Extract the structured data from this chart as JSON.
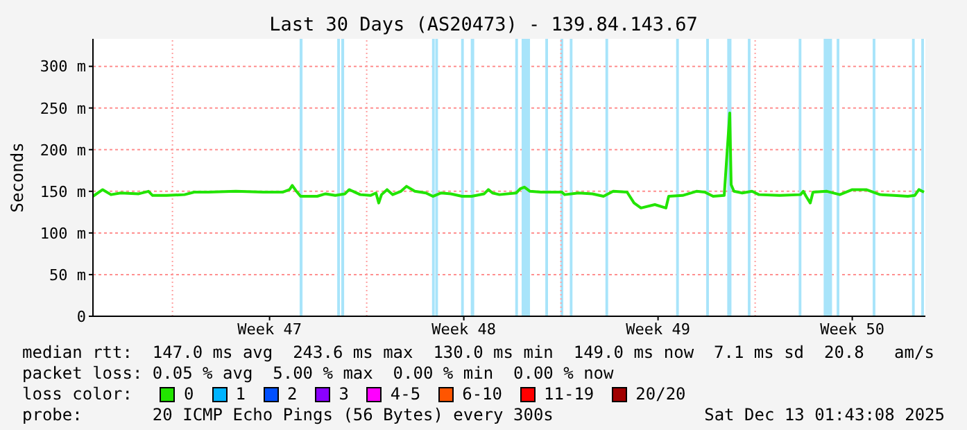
{
  "chart_data": {
    "type": "line",
    "title": "Last 30 Days (AS20473) - 139.84.143.67",
    "ylabel": "Seconds",
    "x": [
      "2025-11-14T03:14",
      "2025-11-14T11:38",
      "2025-11-14T18:50",
      "2025-11-15T03:14",
      "2025-11-15T18:50",
      "2025-11-16T03:14",
      "2025-11-16T06:50",
      "2025-11-16T18:50",
      "2025-11-17T10:26",
      "2025-11-17T18:50",
      "2025-11-18T06:50",
      "2025-11-19T06:50",
      "2025-11-20T06:50",
      "2025-11-20T23:14",
      "2025-11-21T05:14",
      "2025-11-21T07:38",
      "2025-11-21T11:14",
      "2025-11-21T14:50",
      "2025-11-22T05:14",
      "2025-11-22T12:26",
      "2025-11-22T20:50",
      "2025-11-23T05:14",
      "2025-11-23T08:50",
      "2025-11-23T18:26",
      "2025-11-24T03:14",
      "2025-11-24T08:02",
      "2025-11-24T10:26",
      "2025-11-24T12:50",
      "2025-11-24T17:38",
      "2025-11-24T22:26",
      "2025-11-25T05:38",
      "2025-11-25T10:26",
      "2025-11-25T17:38",
      "2025-11-26T03:14",
      "2025-11-26T09:14",
      "2025-11-26T16:26",
      "2025-11-27T00:50",
      "2025-11-27T10:26",
      "2025-11-27T18:50",
      "2025-11-28T05:38",
      "2025-11-28T09:14",
      "2025-11-28T12:50",
      "2025-11-28T18:50",
      "2025-11-29T09:14",
      "2025-11-29T12:50",
      "2025-11-29T16:26",
      "2025-11-29T21:14",
      "2025-11-30T06:50",
      "2025-12-01T00:50",
      "2025-12-01T03:14",
      "2025-12-01T15:14",
      "2025-12-02T03:14",
      "2025-12-02T12:50",
      "2025-12-02T21:14",
      "2025-12-03T09:14",
      "2025-12-03T15:14",
      "2025-12-03T21:14",
      "2025-12-04T09:14",
      "2025-12-04T18:50",
      "2025-12-04T21:14",
      "2025-12-05T09:14",
      "2025-12-05T21:14",
      "2025-12-06T04:26",
      "2025-12-06T11:38",
      "2025-12-06T21:14",
      "2025-12-07T02:02",
      "2025-12-07T03:14",
      "2025-12-07T05:38",
      "2025-12-07T12:50",
      "2025-12-07T21:14",
      "2025-12-08T03:14",
      "2025-12-08T21:14",
      "2025-12-09T15:14",
      "2025-12-09T17:38",
      "2025-12-09T20:02",
      "2025-12-09T23:38",
      "2025-12-10T02:02",
      "2025-12-10T14:02",
      "2025-12-11T01:14",
      "2025-12-11T12:02",
      "2025-12-12T00:02",
      "2025-12-12T12:02",
      "2025-12-13T00:02",
      "2025-12-13T12:02",
      "2025-12-13T18:02",
      "2025-12-13T21:38",
      "2025-12-14T02:02"
    ],
    "series": [
      {
        "name": "0",
        "color": "#22e400",
        "values": [
          144,
          152,
          146,
          148,
          147,
          150,
          145,
          145,
          146,
          149,
          149,
          150,
          149,
          149,
          152,
          157,
          150,
          144,
          144,
          147,
          145,
          147,
          152,
          146,
          145,
          148,
          136,
          146,
          152,
          146,
          150,
          156,
          150,
          148,
          144,
          148,
          147,
          144,
          144,
          147,
          152,
          148,
          146,
          148,
          153,
          155,
          150,
          149,
          149,
          146,
          148,
          147,
          144,
          150,
          149,
          136,
          130,
          134,
          130,
          144,
          145,
          150,
          149,
          144,
          145,
          244,
          158,
          150,
          148,
          150,
          146,
          145,
          146,
          150,
          144,
          136,
          149,
          150,
          146,
          152,
          152,
          146,
          145,
          144,
          145,
          152,
          149
        ]
      },
      {
        "name": "1",
        "color": "#00b4ff",
        "values": [
          null,
          null,
          null,
          null,
          null,
          null,
          null,
          null,
          null,
          null,
          null,
          null,
          null,
          null,
          null,
          null,
          null,
          null,
          null,
          null,
          null,
          null,
          null,
          null,
          null,
          null,
          null,
          null,
          null,
          null,
          null,
          null,
          null,
          null,
          null,
          null,
          null,
          null,
          null,
          null,
          null,
          null,
          null,
          null,
          null,
          null,
          null,
          null,
          null,
          null,
          null,
          null,
          null,
          null,
          null,
          null,
          null,
          null,
          null,
          null,
          null,
          null,
          null,
          null,
          null,
          null,
          null,
          null,
          null,
          null,
          null,
          null,
          null,
          null,
          null,
          null,
          null,
          null,
          null,
          null,
          null,
          null,
          null,
          null,
          null,
          null,
          null
        ]
      },
      {
        "name": "2",
        "color": "#0050ff",
        "values": [
          null,
          null,
          null,
          null,
          null,
          null,
          null,
          null,
          null,
          null,
          null,
          null,
          null,
          null,
          null,
          null,
          null,
          null,
          null,
          null,
          null,
          null,
          null,
          null,
          null,
          null,
          null,
          null,
          null,
          null,
          null,
          null,
          null,
          null,
          null,
          null,
          null,
          null,
          null,
          null,
          null,
          null,
          null,
          null,
          null,
          null,
          null,
          null,
          null,
          null,
          null,
          null,
          null,
          null,
          null,
          null,
          null,
          null,
          null,
          null,
          null,
          null,
          null,
          null,
          null,
          null,
          null,
          null,
          null,
          null,
          null,
          null,
          null,
          null,
          null,
          null,
          null,
          null,
          null,
          null,
          null,
          null,
          null,
          null,
          null,
          null,
          null
        ]
      },
      {
        "name": "3",
        "color": "#8a00ff",
        "values": [
          null,
          null,
          null,
          null,
          null,
          null,
          null,
          null,
          null,
          null,
          null,
          null,
          null,
          null,
          null,
          null,
          null,
          null,
          null,
          null,
          null,
          null,
          null,
          null,
          null,
          null,
          null,
          null,
          null,
          null,
          null,
          null,
          null,
          null,
          null,
          null,
          null,
          null,
          null,
          null,
          null,
          null,
          null,
          null,
          null,
          null,
          null,
          null,
          null,
          null,
          null,
          null,
          null,
          null,
          null,
          null,
          null,
          null,
          null,
          null,
          null,
          null,
          null,
          null,
          null,
          null,
          null,
          null,
          null,
          null,
          null,
          null,
          null,
          null,
          null,
          null,
          null,
          null,
          null,
          null,
          null,
          null,
          null,
          null,
          null,
          null,
          null
        ]
      },
      {
        "name": "4-5",
        "color": "#ff00ff",
        "values": [
          null,
          null,
          null,
          null,
          null,
          null,
          null,
          null,
          null,
          null,
          null,
          null,
          null,
          null,
          null,
          null,
          null,
          null,
          null,
          null,
          null,
          null,
          null,
          null,
          null,
          null,
          null,
          null,
          null,
          null,
          null,
          null,
          null,
          null,
          null,
          null,
          null,
          null,
          null,
          null,
          null,
          null,
          null,
          null,
          null,
          null,
          null,
          null,
          null,
          null,
          null,
          null,
          null,
          null,
          null,
          null,
          null,
          null,
          null,
          null,
          null,
          null,
          null,
          null,
          null,
          null,
          null,
          null,
          null,
          null,
          null,
          null,
          null,
          null,
          null,
          null,
          null,
          null,
          null,
          null,
          null,
          null,
          null,
          null,
          null,
          null,
          null
        ]
      },
      {
        "name": "6-10",
        "color": "#ff5500",
        "values": [
          null,
          null,
          null,
          null,
          null,
          null,
          null,
          null,
          null,
          null,
          null,
          null,
          null,
          null,
          null,
          null,
          null,
          null,
          null,
          null,
          null,
          null,
          null,
          null,
          null,
          null,
          null,
          null,
          null,
          null,
          null,
          null,
          null,
          null,
          null,
          null,
          null,
          null,
          null,
          null,
          null,
          null,
          null,
          null,
          null,
          null,
          null,
          null,
          null,
          null,
          null,
          null,
          null,
          null,
          null,
          null,
          null,
          null,
          null,
          null,
          null,
          null,
          null,
          null,
          null,
          null,
          null,
          null,
          null,
          null,
          null,
          null,
          null,
          null,
          null,
          null,
          null,
          null,
          null,
          null,
          null,
          null,
          null,
          null,
          null,
          null,
          null
        ]
      },
      {
        "name": "11-19",
        "color": "#ff0000",
        "values": [
          null,
          null,
          null,
          null,
          null,
          null,
          null,
          null,
          null,
          null,
          null,
          null,
          null,
          null,
          null,
          null,
          null,
          null,
          null,
          null,
          null,
          null,
          null,
          null,
          null,
          null,
          null,
          null,
          null,
          null,
          null,
          null,
          null,
          null,
          null,
          null,
          null,
          null,
          null,
          null,
          null,
          null,
          null,
          null,
          null,
          null,
          null,
          null,
          null,
          null,
          null,
          null,
          null,
          null,
          null,
          null,
          null,
          null,
          null,
          null,
          null,
          null,
          null,
          null,
          null,
          null,
          null,
          null,
          null,
          null,
          null,
          null,
          null,
          null,
          null,
          null,
          null,
          null,
          null,
          null,
          null,
          null,
          null,
          null,
          null,
          null,
          null
        ]
      },
      {
        "name": "20/20",
        "color": "#a00000",
        "values": [
          null,
          null,
          null,
          null,
          null,
          null,
          null,
          null,
          null,
          null,
          null,
          null,
          null,
          null,
          null,
          null,
          null,
          null,
          null,
          null,
          null,
          null,
          null,
          null,
          null,
          null,
          null,
          null,
          null,
          null,
          null,
          null,
          null,
          null,
          null,
          null,
          null,
          null,
          null,
          null,
          null,
          null,
          null,
          null,
          null,
          null,
          null,
          null,
          null,
          null,
          null,
          null,
          null,
          null,
          null,
          null,
          null,
          null,
          null,
          null,
          null,
          null,
          null,
          null,
          null,
          null,
          null,
          null,
          null,
          null,
          null,
          null,
          null,
          null,
          null,
          null,
          null,
          null,
          null,
          null,
          null,
          null,
          null,
          null,
          null,
          null,
          null
        ]
      }
    ],
    "xlim": [
      "2025-11-14T03:14",
      "2025-12-14T03:14"
    ],
    "xticks": [
      {
        "value": "2025-11-20T12:00",
        "label": "Week 47"
      },
      {
        "value": "2025-11-27T12:00",
        "label": "Week 48"
      },
      {
        "value": "2025-12-04T12:00",
        "label": "Week 49"
      },
      {
        "value": "2025-12-11T12:00",
        "label": "Week 50"
      }
    ],
    "ylim": [
      0,
      333
    ],
    "yticks": [
      0,
      {
        "value": 50,
        "label": "50 m"
      },
      {
        "value": 100,
        "label": "100 m"
      },
      {
        "value": 150,
        "label": "150 m"
      },
      {
        "value": 200,
        "label": "200 m"
      },
      {
        "value": 250,
        "label": "250 m"
      },
      {
        "value": 300,
        "label": "300 m"
      }
    ],
    "grid": "y",
    "legend": "bottom",
    "ref_lines": [
      {
        "axis": "x",
        "value": "2025-11-17T00:00",
        "color": "#ff9f9f",
        "line_style": "dotted"
      },
      {
        "axis": "x",
        "value": "2025-11-24T00:00",
        "color": "#ff9f9f",
        "line_style": "dotted"
      },
      {
        "axis": "x",
        "value": "2025-12-01T00:00",
        "color": "#ff9f9f",
        "line_style": "dotted"
      },
      {
        "axis": "x",
        "value": "2025-12-08T00:00",
        "color": "#ff9f9f",
        "line_style": "dotted"
      }
    ],
    "bands": [
      {
        "axis": "x",
        "from": "2025-11-21T14:00",
        "to": "2025-11-21T16:30",
        "color": "#a8e4fa"
      },
      {
        "axis": "x",
        "from": "2025-11-22T22:30",
        "to": "2025-11-23T00:50",
        "color": "#a8e4fa"
      },
      {
        "axis": "x",
        "from": "2025-11-23T02:00",
        "to": "2025-11-23T04:30",
        "color": "#a8e4fa"
      },
      {
        "axis": "x",
        "from": "2025-11-26T08:30",
        "to": "2025-11-26T10:50",
        "color": "#a8e4fa"
      },
      {
        "axis": "x",
        "from": "2025-11-26T11:20",
        "to": "2025-11-26T13:40",
        "color": "#a8e4fa"
      },
      {
        "axis": "x",
        "from": "2025-11-27T09:40",
        "to": "2025-11-27T12:00",
        "color": "#a8e4fa"
      },
      {
        "axis": "x",
        "from": "2025-11-27T18:00",
        "to": "2025-11-27T21:00",
        "color": "#a8e4fa"
      },
      {
        "axis": "x",
        "from": "2025-11-29T08:30",
        "to": "2025-11-29T10:50",
        "color": "#a8e4fa"
      },
      {
        "axis": "x",
        "from": "2025-11-29T14:00",
        "to": "2025-11-29T21:15",
        "color": "#a8e4fa"
      },
      {
        "axis": "x",
        "from": "2025-11-30T10:30",
        "to": "2025-11-30T12:50",
        "color": "#a8e4fa"
      },
      {
        "axis": "x",
        "from": "2025-11-30T23:40",
        "to": "2025-12-01T02:00",
        "color": "#a8e4fa"
      },
      {
        "axis": "x",
        "from": "2025-12-01T07:40",
        "to": "2025-12-01T10:00",
        "color": "#a8e4fa"
      },
      {
        "axis": "x",
        "from": "2025-12-02T14:30",
        "to": "2025-12-02T16:50",
        "color": "#a8e4fa"
      },
      {
        "axis": "x",
        "from": "2025-12-05T03:40",
        "to": "2025-12-05T06:00",
        "color": "#a8e4fa"
      },
      {
        "axis": "x",
        "from": "2025-12-06T05:40",
        "to": "2025-12-06T08:00",
        "color": "#a8e4fa"
      },
      {
        "axis": "x",
        "from": "2025-12-06T23:50",
        "to": "2025-12-07T03:30",
        "color": "#a8e4fa"
      },
      {
        "axis": "x",
        "from": "2025-12-07T17:40",
        "to": "2025-12-07T20:00",
        "color": "#a8e4fa"
      },
      {
        "axis": "x",
        "from": "2025-12-09T13:40",
        "to": "2025-12-09T16:00",
        "color": "#a8e4fa"
      },
      {
        "axis": "x",
        "from": "2025-12-10T11:15",
        "to": "2025-12-10T18:30",
        "color": "#a8e4fa"
      },
      {
        "axis": "x",
        "from": "2025-12-10T22:30",
        "to": "2025-12-11T00:50",
        "color": "#a8e4fa"
      },
      {
        "axis": "x",
        "from": "2025-12-12T05:40",
        "to": "2025-12-12T08:00",
        "color": "#a8e4fa"
      },
      {
        "axis": "x",
        "from": "2025-12-13T15:40",
        "to": "2025-12-13T18:00",
        "color": "#a8e4fa"
      },
      {
        "axis": "x",
        "from": "2025-12-13T23:40",
        "to": "2025-12-14T02:00",
        "color": "#a8e4fa"
      }
    ],
    "annotations": [
      "median rtt:  147.0 ms avg  243.6 ms max  130.0 ms min  149.0 ms now  7.1 ms sd  20.8   am/s",
      "packet loss: 0.05 % avg  5.00 % max  0.00 % min  0.00 % now",
      "loss color:",
      "probe:       20 ICMP Echo Pings (56 Bytes) every 300s",
      "Sat Dec 13 01:43:08 2025"
    ]
  }
}
